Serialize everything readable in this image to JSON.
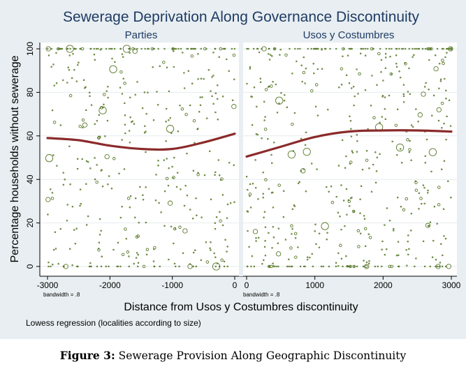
{
  "chart_data": {
    "type": "scatter",
    "title": "Sewerage Deprivation Along Governance Discontinuity",
    "xlabel": "Distance from Usos y Costumbres discontinuity",
    "ylabel": "Percentage households without sewerage",
    "note": "Lowess regression (localities according to size)",
    "ylim": [
      0,
      100
    ],
    "yticks": [
      "0",
      "20",
      "40",
      "60",
      "80",
      "100"
    ],
    "grid": true,
    "panels": [
      {
        "name": "Parties",
        "xlim": [
          -3000,
          0
        ],
        "xticks": [
          "-3000",
          "-2000",
          "-1000",
          "0"
        ],
        "bandwidth_label": "bandwidth = .8",
        "lowess": [
          [
            -3000,
            59
          ],
          [
            -2500,
            58
          ],
          [
            -2000,
            55.5
          ],
          [
            -1500,
            54
          ],
          [
            -1000,
            54
          ],
          [
            -500,
            57
          ],
          [
            0,
            61
          ]
        ]
      },
      {
        "name": "Usos y Costumbres",
        "xlim": [
          0,
          3000
        ],
        "xticks": [
          "0",
          "1000",
          "2000",
          "3000"
        ],
        "bandwidth_label": "bandwidth = .8",
        "lowess": [
          [
            0,
            50.5
          ],
          [
            500,
            55
          ],
          [
            1000,
            59.5
          ],
          [
            1500,
            62
          ],
          [
            2000,
            62.5
          ],
          [
            2500,
            62.5
          ],
          [
            3000,
            62
          ]
        ]
      }
    ]
  },
  "caption": {
    "label": "Figure 3:",
    "text": "Sewerage Provision Along Geographic Discontinuity"
  },
  "colors": {
    "background": "#e8eef1",
    "plot_area": "#ffffff",
    "marker": "#5a7a2a",
    "lowess": "#8b2a2a",
    "title": "#1f3b64"
  }
}
